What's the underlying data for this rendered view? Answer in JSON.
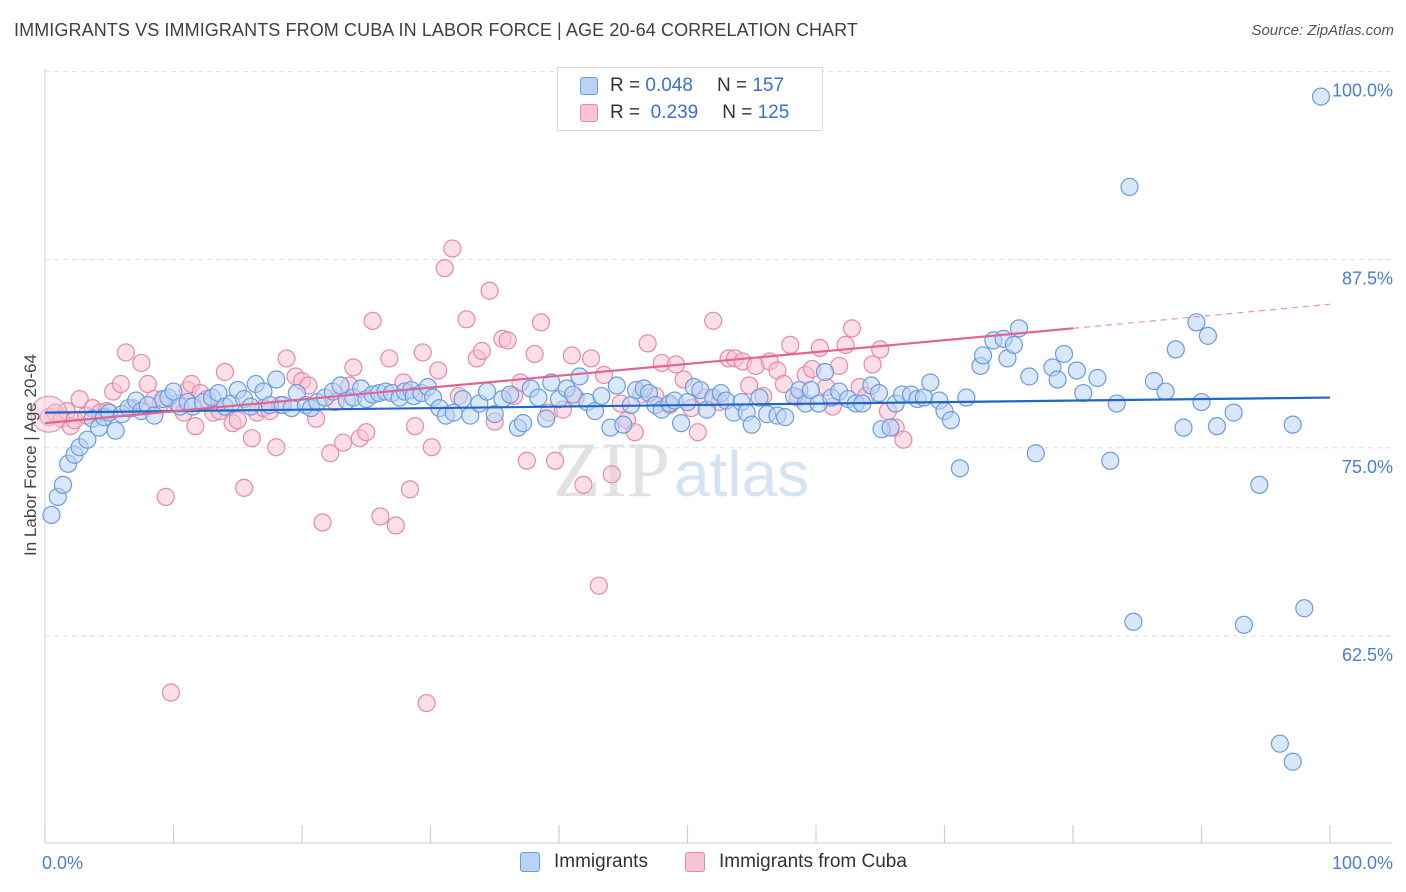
{
  "title": "IMMIGRANTS VS IMMIGRANTS FROM CUBA IN LABOR FORCE | AGE 20-64 CORRELATION CHART",
  "source": "Source: ZipAtlas.com",
  "watermark": {
    "zip": "ZIP",
    "atlas": "atlas"
  },
  "legend": {
    "series_a": {
      "r_label": "R =",
      "r_value": "0.048",
      "n_label": "N =",
      "n_value": "157"
    },
    "series_b": {
      "r_label": "R =",
      "r_value": "0.239",
      "n_label": "N =",
      "n_value": "125"
    }
  },
  "bottom_legend": {
    "a": "Immigrants",
    "b": "Immigrants from Cuba"
  },
  "colors": {
    "blue_fill": "#b9d3f6",
    "blue_stroke": "#6a9ce0",
    "blue_line": "#2266cc",
    "pink_fill": "#f8c3d4",
    "pink_stroke": "#e58aa9",
    "pink_line": "#e06690",
    "grid": "#dddddd",
    "tick_text": "#4a7fd0"
  },
  "chart_data": {
    "type": "scatter",
    "title": "IMMIGRANTS VS IMMIGRANTS FROM CUBA IN LABOR FORCE | AGE 20-64 CORRELATION CHART",
    "xlabel": "",
    "ylabel": "In Labor Force | Age 20-64",
    "xlim": [
      0,
      100
    ],
    "ylim": [
      50,
      101.5
    ],
    "x_tick_labels": [
      "0.0%",
      "100.0%"
    ],
    "y_ticks": [
      62.5,
      75.0,
      87.5,
      100.0
    ],
    "y_tick_labels": [
      "62.5%",
      "75.0%",
      "87.5%",
      "100.0%"
    ],
    "grid": "dashed horizontal",
    "legend_position": "top-center",
    "series": [
      {
        "name": "Immigrants",
        "r": 0.048,
        "n": 157,
        "trend": {
          "x": [
            0,
            100
          ],
          "y": [
            78.6,
            79.6
          ],
          "dashed_from": null
        },
        "points": [
          [
            0.5,
            71.8
          ],
          [
            1,
            73
          ],
          [
            1.4,
            73.8
          ],
          [
            1.8,
            75.2
          ],
          [
            2.3,
            75.8
          ],
          [
            2.7,
            76.3
          ],
          [
            3.3,
            76.8
          ],
          [
            3.7,
            78.2
          ],
          [
            4.2,
            77.6
          ],
          [
            4.6,
            78.3
          ],
          [
            5,
            78.6
          ],
          [
            5.5,
            77.4
          ],
          [
            6,
            78.5
          ],
          [
            6.5,
            78.9
          ],
          [
            7.1,
            79.4
          ],
          [
            7.5,
            78.7
          ],
          [
            8,
            79.1
          ],
          [
            8.5,
            78.4
          ],
          [
            9.2,
            79.5
          ],
          [
            9.6,
            79.6
          ],
          [
            10,
            80
          ],
          [
            10.5,
            79
          ],
          [
            11.1,
            79.3
          ],
          [
            11.5,
            79
          ],
          [
            12.3,
            79.3
          ],
          [
            13,
            79.6
          ],
          [
            13.5,
            79.9
          ],
          [
            14,
            79
          ],
          [
            14.5,
            79.2
          ],
          [
            15,
            80.1
          ],
          [
            15.5,
            79.5
          ],
          [
            16,
            79
          ],
          [
            16.4,
            80.5
          ],
          [
            17,
            80
          ],
          [
            17.5,
            79.1
          ],
          [
            18,
            80.8
          ],
          [
            18.5,
            79.1
          ],
          [
            19.2,
            78.9
          ],
          [
            19.6,
            79.9
          ],
          [
            20.3,
            79.1
          ],
          [
            20.7,
            78.9
          ],
          [
            21.2,
            79.3
          ],
          [
            21.8,
            79.6
          ],
          [
            22.4,
            80
          ],
          [
            23,
            80.4
          ],
          [
            23.5,
            79.4
          ],
          [
            24,
            79.6
          ],
          [
            24.6,
            80.2
          ],
          [
            25,
            79.5
          ],
          [
            25.5,
            79.8
          ],
          [
            26,
            79.9
          ],
          [
            26.5,
            80
          ],
          [
            27,
            79.9
          ],
          [
            27.6,
            79.6
          ],
          [
            28,
            80
          ],
          [
            28.5,
            80.1
          ],
          [
            28.7,
            79.7
          ],
          [
            29.3,
            79.9
          ],
          [
            29.8,
            80.3
          ],
          [
            30.2,
            79.6
          ],
          [
            30.7,
            78.9
          ],
          [
            31.2,
            78.4
          ],
          [
            31.8,
            78.6
          ],
          [
            32.5,
            79.5
          ],
          [
            33.1,
            78.4
          ],
          [
            33.8,
            79.2
          ],
          [
            34.4,
            80
          ],
          [
            35,
            78.5
          ],
          [
            35.6,
            79.5
          ],
          [
            36.2,
            79.8
          ],
          [
            36.8,
            77.6
          ],
          [
            37.2,
            77.9
          ],
          [
            37.8,
            80.2
          ],
          [
            38.4,
            79.6
          ],
          [
            39,
            78.2
          ],
          [
            39.4,
            80.6
          ],
          [
            40,
            79.5
          ],
          [
            40.6,
            80.2
          ],
          [
            41.1,
            79.8
          ],
          [
            41.6,
            81
          ],
          [
            42.2,
            79.3
          ],
          [
            42.8,
            78.7
          ],
          [
            43.3,
            79.7
          ],
          [
            44,
            77.6
          ],
          [
            44.5,
            80.4
          ],
          [
            45,
            77.8
          ],
          [
            45.6,
            79.1
          ],
          [
            46,
            80.1
          ],
          [
            46.6,
            80.2
          ],
          [
            47,
            79.9
          ],
          [
            47.5,
            79.1
          ],
          [
            48,
            78.8
          ],
          [
            48.6,
            79.2
          ],
          [
            49,
            79.4
          ],
          [
            49.5,
            77.9
          ],
          [
            50,
            79.3
          ],
          [
            50.5,
            80.3
          ],
          [
            51,
            80.1
          ],
          [
            51.5,
            78.8
          ],
          [
            52,
            79.6
          ],
          [
            52.6,
            79.9
          ],
          [
            53,
            79.4
          ],
          [
            53.6,
            78.6
          ],
          [
            54.2,
            79.3
          ],
          [
            54.6,
            78.6
          ],
          [
            55,
            77.8
          ],
          [
            55.6,
            79.6
          ],
          [
            56.2,
            78.5
          ],
          [
            57,
            78.4
          ],
          [
            57.6,
            78.3
          ],
          [
            58.3,
            79.7
          ],
          [
            58.7,
            80.1
          ],
          [
            59.2,
            79.2
          ],
          [
            59.6,
            80.1
          ],
          [
            60.2,
            79.2
          ],
          [
            60.7,
            81.3
          ],
          [
            61.2,
            79.6
          ],
          [
            61.8,
            80
          ],
          [
            62.5,
            79.5
          ],
          [
            63.1,
            79.2
          ],
          [
            63.6,
            79.2
          ],
          [
            64.3,
            80.4
          ],
          [
            64.9,
            79.9
          ],
          [
            65.1,
            77.5
          ],
          [
            65.8,
            77.6
          ],
          [
            66.2,
            79.2
          ],
          [
            66.7,
            79.8
          ],
          [
            67.4,
            79.8
          ],
          [
            67.9,
            79.5
          ],
          [
            68.4,
            79.6
          ],
          [
            68.9,
            80.6
          ],
          [
            69.6,
            79.4
          ],
          [
            70,
            78.7
          ],
          [
            70.5,
            78.1
          ],
          [
            71.2,
            74.9
          ],
          [
            71.7,
            79.6
          ],
          [
            72.8,
            81.7
          ],
          [
            73,
            82.4
          ],
          [
            73.8,
            83.4
          ],
          [
            74.6,
            83.5
          ],
          [
            74.9,
            82.2
          ],
          [
            75.4,
            83.1
          ],
          [
            75.8,
            84.2
          ],
          [
            76.6,
            81
          ],
          [
            77.1,
            75.9
          ],
          [
            78.4,
            81.6
          ],
          [
            78.8,
            80.8
          ],
          [
            79.3,
            82.5
          ],
          [
            80.3,
            81.4
          ],
          [
            80.8,
            79.9
          ],
          [
            81.9,
            80.9
          ],
          [
            82.9,
            75.4
          ],
          [
            83.4,
            79.2
          ],
          [
            84.4,
            93.6
          ],
          [
            84.7,
            64.7
          ],
          [
            86.3,
            80.7
          ],
          [
            87.2,
            80
          ],
          [
            88,
            82.8
          ],
          [
            88.6,
            77.6
          ],
          [
            89.6,
            84.6
          ],
          [
            90,
            79.3
          ],
          [
            90.5,
            83.7
          ],
          [
            91.2,
            77.7
          ],
          [
            92.5,
            78.6
          ],
          [
            93.3,
            64.5
          ],
          [
            94.5,
            73.8
          ],
          [
            97.1,
            103.6
          ],
          [
            97.1,
            77.8
          ],
          [
            99.3,
            99.6
          ],
          [
            98,
            65.6
          ],
          [
            97.1,
            55.4
          ],
          [
            96.1,
            56.6
          ]
        ]
      },
      {
        "name": "Immigrants from Cuba",
        "r": 0.239,
        "n": 125,
        "trend": {
          "x": [
            0,
            80,
            100
          ],
          "y": [
            77.9,
            84.2,
            85.8
          ],
          "dashed_from": 80
        },
        "points": [
          [
            0.3,
            78.3
          ],
          [
            0.8,
            78.6
          ],
          [
            1.3,
            78.2
          ],
          [
            1.7,
            78.7
          ],
          [
            2,
            77.7
          ],
          [
            2.3,
            78.1
          ],
          [
            2.7,
            79.5
          ],
          [
            3.2,
            78.4
          ],
          [
            3.7,
            78.9
          ],
          [
            4.3,
            78.6
          ],
          [
            4.8,
            78.7
          ],
          [
            5.3,
            80
          ],
          [
            5.9,
            80.5
          ],
          [
            6.3,
            82.6
          ],
          [
            6.8,
            78.9
          ],
          [
            7.5,
            81.9
          ],
          [
            8,
            80.5
          ],
          [
            8.5,
            79.5
          ],
          [
            9,
            79.2
          ],
          [
            9.4,
            73
          ],
          [
            9.8,
            60
          ],
          [
            10.3,
            79.2
          ],
          [
            10.8,
            78.6
          ],
          [
            11.1,
            80.1
          ],
          [
            11.4,
            80.5
          ],
          [
            11.7,
            77.7
          ],
          [
            12.1,
            79.9
          ],
          [
            12.6,
            79.5
          ],
          [
            13.1,
            78.6
          ],
          [
            13.6,
            78.7
          ],
          [
            14,
            81.3
          ],
          [
            14.6,
            77.9
          ],
          [
            15,
            78.1
          ],
          [
            15.5,
            73.6
          ],
          [
            16.1,
            76.9
          ],
          [
            16.5,
            78.6
          ],
          [
            17,
            78.9
          ],
          [
            17.5,
            78.7
          ],
          [
            18,
            76.3
          ],
          [
            18.3,
            79.1
          ],
          [
            18.8,
            82.2
          ],
          [
            19.5,
            81
          ],
          [
            20,
            80.7
          ],
          [
            20.5,
            80.4
          ],
          [
            21.1,
            78.2
          ],
          [
            21.6,
            71.3
          ],
          [
            22.2,
            75.9
          ],
          [
            22.6,
            79.3
          ],
          [
            23.2,
            76.6
          ],
          [
            23.7,
            80.4
          ],
          [
            24,
            81.6
          ],
          [
            24.5,
            76.9
          ],
          [
            25,
            77.3
          ],
          [
            25.5,
            84.7
          ],
          [
            26.1,
            71.7
          ],
          [
            26.8,
            82.2
          ],
          [
            27.3,
            71.1
          ],
          [
            27.9,
            80.6
          ],
          [
            28.4,
            73.5
          ],
          [
            28.8,
            77.7
          ],
          [
            29.4,
            82.6
          ],
          [
            29.7,
            59.3
          ],
          [
            30.1,
            76.3
          ],
          [
            30.6,
            81.4
          ],
          [
            31.1,
            88.2
          ],
          [
            31.7,
            89.5
          ],
          [
            32.2,
            79.7
          ],
          [
            32.8,
            84.8
          ],
          [
            33.6,
            82.2
          ],
          [
            34,
            82.7
          ],
          [
            34.6,
            86.7
          ],
          [
            35,
            78
          ],
          [
            35.6,
            83.5
          ],
          [
            36,
            83.4
          ],
          [
            36.5,
            79.7
          ],
          [
            37,
            80.6
          ],
          [
            37.5,
            75.4
          ],
          [
            38.1,
            82.5
          ],
          [
            38.6,
            84.6
          ],
          [
            39.2,
            78.6
          ],
          [
            39.7,
            75.4
          ],
          [
            40.3,
            78.8
          ],
          [
            41,
            82.4
          ],
          [
            41.3,
            79.6
          ],
          [
            41.9,
            73.8
          ],
          [
            42.5,
            82.2
          ],
          [
            43.1,
            67.1
          ],
          [
            43.5,
            81.1
          ],
          [
            44.1,
            74.5
          ],
          [
            44.8,
            79.2
          ],
          [
            45.3,
            78.1
          ],
          [
            45.9,
            77.3
          ],
          [
            46.4,
            79.8
          ],
          [
            46.9,
            83.2
          ],
          [
            47.5,
            79.7
          ],
          [
            48,
            81.9
          ],
          [
            48.6,
            79.1
          ],
          [
            49.1,
            81.8
          ],
          [
            49.7,
            80.8
          ],
          [
            50.3,
            78.9
          ],
          [
            50.8,
            77.3
          ],
          [
            51.4,
            79.6
          ],
          [
            52,
            84.7
          ],
          [
            52.5,
            79.3
          ],
          [
            53.2,
            82.2
          ],
          [
            53.7,
            82.2
          ],
          [
            54.3,
            82
          ],
          [
            54.8,
            80.4
          ],
          [
            55.3,
            81.7
          ],
          [
            55.9,
            79.7
          ],
          [
            56.4,
            82
          ],
          [
            57,
            81.4
          ],
          [
            57.5,
            80.5
          ],
          [
            58,
            83.1
          ],
          [
            58.6,
            79.6
          ],
          [
            59.2,
            81.1
          ],
          [
            59.7,
            81.5
          ],
          [
            60.3,
            82.9
          ],
          [
            60.8,
            80.3
          ],
          [
            61.3,
            79
          ],
          [
            61.8,
            81.7
          ],
          [
            62.3,
            83.1
          ],
          [
            62.8,
            84.2
          ],
          [
            63.4,
            80.3
          ],
          [
            63.9,
            79.7
          ],
          [
            64.4,
            81.8
          ],
          [
            65,
            82.8
          ],
          [
            65.6,
            78.7
          ],
          [
            66.2,
            77.6
          ],
          [
            66.8,
            76.8
          ]
        ]
      }
    ]
  }
}
